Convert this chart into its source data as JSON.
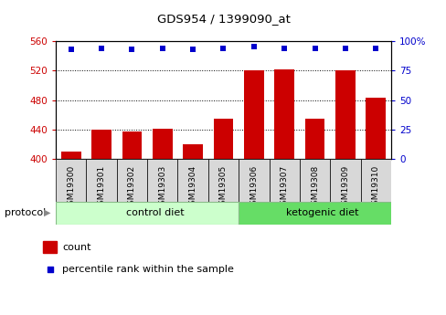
{
  "title": "GDS954 / 1399090_at",
  "samples": [
    "GSM19300",
    "GSM19301",
    "GSM19302",
    "GSM19303",
    "GSM19304",
    "GSM19305",
    "GSM19306",
    "GSM19307",
    "GSM19308",
    "GSM19309",
    "GSM19310"
  ],
  "count_values": [
    410,
    440,
    437,
    441,
    420,
    455,
    520,
    522,
    455,
    520,
    483
  ],
  "percentile_values": [
    93,
    94,
    93,
    94,
    93,
    94,
    95,
    94,
    94,
    94,
    94
  ],
  "bar_color": "#cc0000",
  "dot_color": "#0000cc",
  "left_ylim": [
    400,
    560
  ],
  "left_yticks": [
    400,
    440,
    480,
    520,
    560
  ],
  "right_ylim": [
    0,
    100
  ],
  "right_yticks": [
    0,
    25,
    50,
    75,
    100
  ],
  "right_yticklabels": [
    "0",
    "25",
    "50",
    "75",
    "100%"
  ],
  "left_ylabel_color": "#cc0000",
  "right_ylabel_color": "#0000cc",
  "group1_label": "control diet",
  "group2_label": "ketogenic diet",
  "group1_count": 6,
  "group2_count": 5,
  "protocol_label": "protocol",
  "legend_count_label": "count",
  "legend_percentile_label": "percentile rank within the sample",
  "group_color_light": "#ccffcc",
  "group_color_dark": "#66dd66",
  "gray_box_color": "#d8d8d8"
}
